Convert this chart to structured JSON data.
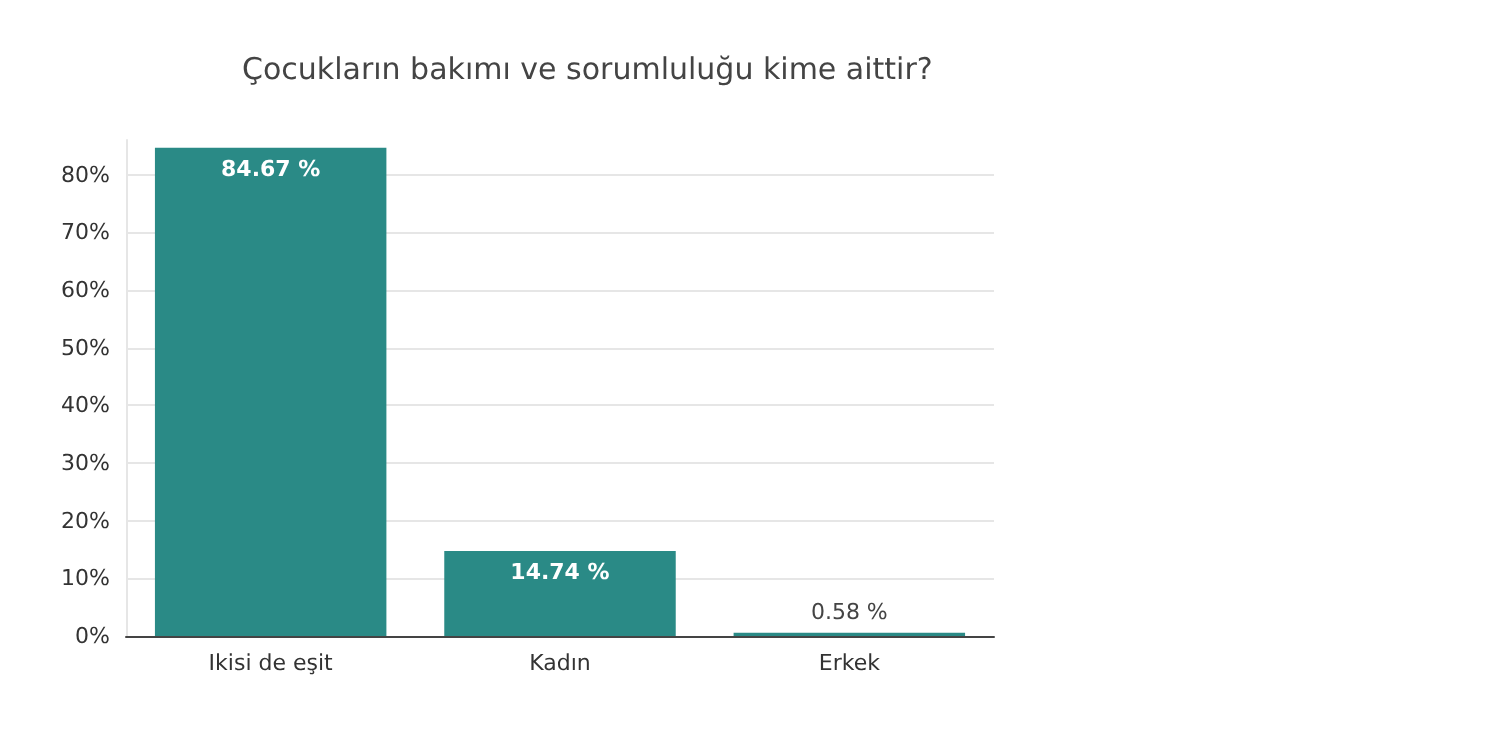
{
  "chart_data": {
    "type": "bar",
    "title": "Çocukların bakımı ve sorumluluğu kime aittir?",
    "categories": [
      "Ikisi de eşit",
      "Kadın",
      "Erkek"
    ],
    "values": [
      84.67,
      14.74,
      0.58
    ],
    "value_labels": [
      "84.67 %",
      "14.74 %",
      "0.58 %"
    ],
    "color": "#2a8a86",
    "ylim": [
      0,
      86
    ],
    "yticks": [
      {
        "value": 0,
        "label": "0%"
      },
      {
        "value": 10,
        "label": "10%"
      },
      {
        "value": 20,
        "label": "20%"
      },
      {
        "value": 30,
        "label": "30%"
      },
      {
        "value": 40,
        "label": "40%"
      },
      {
        "value": 50,
        "label": "50%"
      },
      {
        "value": 60,
        "label": "60%"
      },
      {
        "value": 70,
        "label": "70%"
      },
      {
        "value": 80,
        "label": "80%"
      }
    ],
    "grid": "y"
  }
}
